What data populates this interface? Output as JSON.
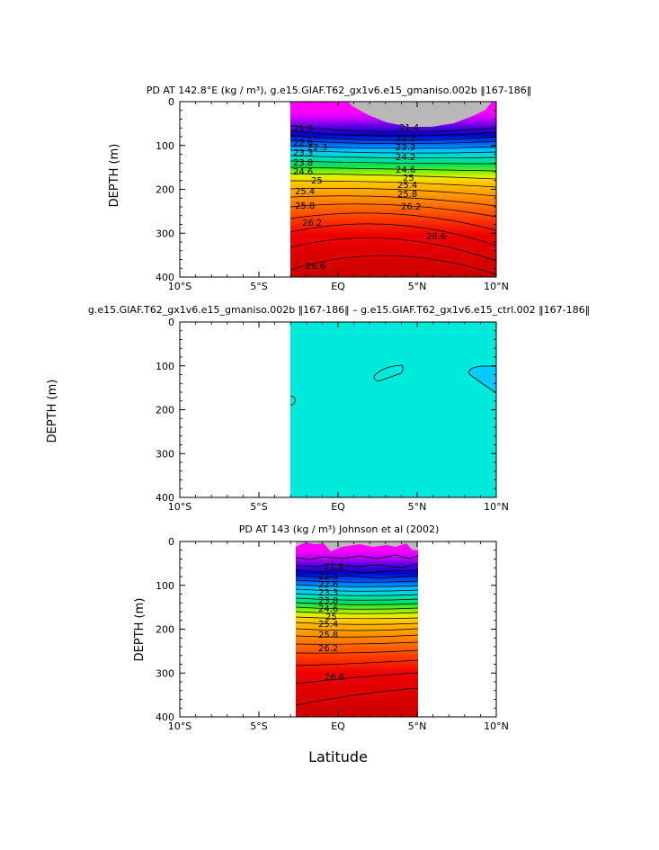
{
  "chart_data": [
    {
      "type": "contour",
      "title": "PD AT 142.8°E (kg / m³), g.e15.GIAF.T62_gx1v6.e15_gmaniso.002b ‖167-186‖",
      "ylabel": "DEPTH (m)",
      "xlabel": "",
      "xlim": [
        -10,
        10
      ],
      "ylim": [
        400,
        0
      ],
      "x_tick_labels": [
        "10°S",
        "5°S",
        "EQ",
        "5°N",
        "10°N"
      ],
      "y_tick_labels": [
        "0",
        "100",
        "200",
        "300",
        "400"
      ],
      "data_extent_lat": [
        -3.0,
        10.0
      ],
      "missing_top": {
        "lat": [
          1.0,
          9.7
        ],
        "depth_max": 55
      },
      "contour_labels": [
        "21.8",
        "22.3",
        "22.6",
        "23.3",
        "23.8",
        "24.2",
        "24.6",
        "25",
        "25.4",
        "25.8",
        "26.2",
        "26.6",
        "21.4"
      ],
      "density_by_depth": [
        {
          "depth": 0,
          "pd": 21.0
        },
        {
          "depth": 50,
          "pd": 21.8
        },
        {
          "depth": 100,
          "pd": 22.8
        },
        {
          "depth": 150,
          "pd": 24.6
        },
        {
          "depth": 200,
          "pd": 25.4
        },
        {
          "depth": 250,
          "pd": 26.0
        },
        {
          "depth": 300,
          "pd": 26.4
        },
        {
          "depth": 400,
          "pd": 26.8
        }
      ]
    },
    {
      "type": "contour",
      "title": "g.e15.GIAF.T62_gx1v6.e15_gmaniso.002b ‖167-186‖ – g.e15.GIAF.T62_gx1v6.e15_ctrl.002 ‖167-186‖",
      "ylabel": "DEPTH (m)",
      "xlabel": "",
      "xlim": [
        -10,
        10
      ],
      "ylim": [
        400,
        0
      ],
      "x_tick_labels": [
        "10°S",
        "5°S",
        "EQ",
        "5°N",
        "10°N"
      ],
      "y_tick_labels": [
        "0",
        "100",
        "200",
        "300",
        "400"
      ],
      "data_extent_lat": [
        -3.0,
        10.0
      ],
      "fill_color": "#00eadb",
      "closed_contours": [
        {
          "lat_center": 3.2,
          "depth_center": 118,
          "fill": "#00e8dc"
        },
        {
          "lat_center": 9.6,
          "depth_center": 120,
          "fill": "#00ccff"
        },
        {
          "lat_center": -2.9,
          "depth_center": 180,
          "fill": "#00e8dc"
        }
      ]
    },
    {
      "type": "contour",
      "title": "PD AT 143 (kg / m³) Johnson et al (2002)",
      "ylabel": "DEPTH (m)",
      "xlabel": "Latitude",
      "xlim": [
        -10,
        10
      ],
      "ylim": [
        400,
        0
      ],
      "x_tick_labels": [
        "10°S",
        "5°S",
        "EQ",
        "5°N",
        "10°N"
      ],
      "y_tick_labels": [
        "0",
        "100",
        "200",
        "300",
        "400"
      ],
      "data_extent_lat": [
        -2.5,
        5.0
      ],
      "contour_labels": [
        "21.8",
        "22.3",
        "22.6",
        "23.3",
        "23.8",
        "24.2",
        "24.6",
        "25",
        "25.4",
        "25.8",
        "26.2",
        "26.6"
      ],
      "density_by_depth": [
        {
          "depth": 0,
          "pd": 21.0
        },
        {
          "depth": 50,
          "pd": 21.8
        },
        {
          "depth": 100,
          "pd": 22.9
        },
        {
          "depth": 150,
          "pd": 24.6
        },
        {
          "depth": 200,
          "pd": 25.3
        },
        {
          "depth": 250,
          "pd": 25.9
        },
        {
          "depth": 300,
          "pd": 26.3
        },
        {
          "depth": 400,
          "pd": 26.8
        }
      ]
    }
  ]
}
